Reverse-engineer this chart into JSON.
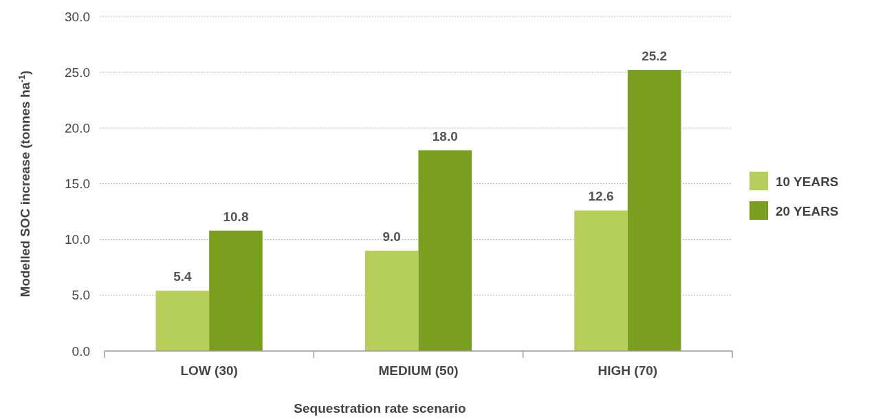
{
  "chart_data": {
    "type": "bar",
    "xlabel": "Sequestration rate scenario",
    "ylabel": "Modelled SOC increase (tonnes ha$^{-1}$)",
    "categories": [
      "LOW (30)",
      "MEDIUM (50)",
      "HIGH (70)"
    ],
    "series": [
      {
        "name": "10 YEARS",
        "color": "#b6cf5b",
        "values": [
          5.4,
          9.0,
          12.6
        ]
      },
      {
        "name": "20 YEARS",
        "color": "#7a9e1d",
        "values": [
          10.8,
          18.0,
          25.2
        ]
      }
    ],
    "ylim": [
      0,
      30
    ],
    "yticks": [
      {
        "value": 0,
        "label": "0.0"
      },
      {
        "value": 5,
        "label": "5.0"
      },
      {
        "value": 10,
        "label": "10.0"
      },
      {
        "value": 15,
        "label": "15.0"
      },
      {
        "value": 20,
        "label": "20.0"
      },
      {
        "value": 25,
        "label": "25.0"
      },
      {
        "value": 30,
        "label": "30.0"
      }
    ],
    "value_labels": [
      [
        "5.4",
        "9.0",
        "12.6"
      ],
      [
        "10.8",
        "18.0",
        "25.2"
      ]
    ],
    "grid": "y",
    "legend": "right"
  }
}
